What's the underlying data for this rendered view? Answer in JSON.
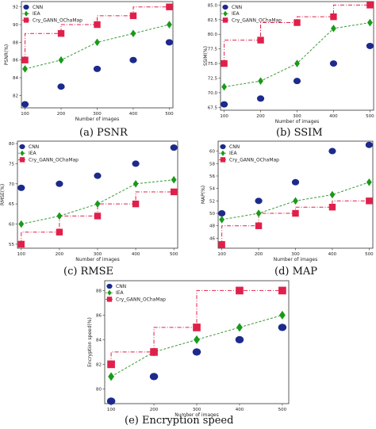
{
  "legend": {
    "cnn": "CNN",
    "iea": "IEA",
    "ours": "Cry_GANN_OChaMap"
  },
  "colors": {
    "cnn": "#1c2a8c",
    "iea": "#1a9a1a",
    "ours": "#e0204a",
    "trend": "#3a9a3a"
  },
  "chart_data": [
    {
      "type": "scatter",
      "caption": "(a) PSNR",
      "xlabel": "Number of images",
      "ylabel": "PSNR(%)",
      "x": [
        100,
        200,
        300,
        400,
        500
      ],
      "xlim": [
        90,
        510
      ],
      "ylim": [
        80.6,
        92.6
      ],
      "yticks": [
        82,
        84,
        86,
        88,
        90,
        92
      ],
      "series": [
        {
          "name": "CNN",
          "values": [
            81,
            83,
            85,
            86,
            88
          ]
        },
        {
          "name": "IEA",
          "values": [
            85,
            86,
            88,
            89,
            90
          ]
        },
        {
          "name": "Cry_GANN_OChaMap",
          "values": [
            86,
            89,
            90,
            91,
            92
          ]
        }
      ]
    },
    {
      "type": "scatter",
      "caption": "(b) SSIM",
      "xlabel": "Number of images",
      "ylabel": "SSIM(%)",
      "x": [
        100,
        200,
        300,
        400,
        500
      ],
      "xlim": [
        90,
        510
      ],
      "ylim": [
        67.0,
        85.6
      ],
      "yticks": [
        67.5,
        70.0,
        72.5,
        75.0,
        77.5,
        80.0,
        82.5,
        85.0
      ],
      "ytick_labels": [
        "67.5",
        "70.0",
        "72.5",
        "75.0",
        "77.5",
        "80.0",
        "82.5",
        "85.0"
      ],
      "series": [
        {
          "name": "CNN",
          "values": [
            68,
            69,
            72,
            75,
            78
          ]
        },
        {
          "name": "IEA",
          "values": [
            71,
            72,
            75,
            81,
            82
          ]
        },
        {
          "name": "Cry_GANN_OChaMap",
          "values": [
            75,
            79,
            82,
            83,
            85
          ]
        }
      ]
    },
    {
      "type": "scatter",
      "caption": "(c) RMSE",
      "xlabel": "Number of images",
      "ylabel": "RMSE(%)",
      "x": [
        100,
        200,
        300,
        400,
        500
      ],
      "xlim": [
        90,
        510
      ],
      "ylim": [
        54.0,
        80.6
      ],
      "yticks": [
        55,
        60,
        65,
        70,
        75,
        80
      ],
      "series": [
        {
          "name": "CNN",
          "values": [
            69,
            70,
            72,
            75,
            79
          ]
        },
        {
          "name": "IEA",
          "values": [
            60,
            62,
            65,
            70,
            71
          ]
        },
        {
          "name": "Cry_GANN_OChaMap",
          "values": [
            55,
            58,
            62,
            65,
            68
          ]
        }
      ]
    },
    {
      "type": "scatter",
      "caption": "(d) MAP",
      "xlabel": "Number of images",
      "ylabel": "MAP(%)",
      "x": [
        100,
        200,
        300,
        400,
        500
      ],
      "xlim": [
        90,
        510
      ],
      "ylim": [
        44.4,
        61.6
      ],
      "yticks": [
        46,
        48,
        50,
        52,
        54,
        56,
        58,
        60
      ],
      "series": [
        {
          "name": "CNN",
          "values": [
            50,
            52,
            55,
            60,
            61
          ]
        },
        {
          "name": "IEA",
          "values": [
            49,
            50,
            52,
            53,
            55
          ]
        },
        {
          "name": "Cry_GANN_OChaMap",
          "values": [
            45,
            48,
            50,
            51,
            52
          ]
        }
      ]
    },
    {
      "type": "scatter",
      "caption": "(e) Encryption speed",
      "xlabel": "Number of images",
      "ylabel": "Encryption speed(%)",
      "x": [
        100,
        200,
        300,
        400,
        500
      ],
      "xlim": [
        85,
        515
      ],
      "ylim": [
        78.8,
        88.8
      ],
      "yticks": [
        80,
        82,
        84,
        86,
        88
      ],
      "series": [
        {
          "name": "CNN",
          "values": [
            79,
            81,
            83,
            84,
            85
          ]
        },
        {
          "name": "IEA",
          "values": [
            81,
            83,
            84,
            85,
            86
          ]
        },
        {
          "name": "Cry_GANN_OChaMap",
          "values": [
            82,
            83,
            85,
            88,
            88
          ]
        }
      ]
    }
  ]
}
